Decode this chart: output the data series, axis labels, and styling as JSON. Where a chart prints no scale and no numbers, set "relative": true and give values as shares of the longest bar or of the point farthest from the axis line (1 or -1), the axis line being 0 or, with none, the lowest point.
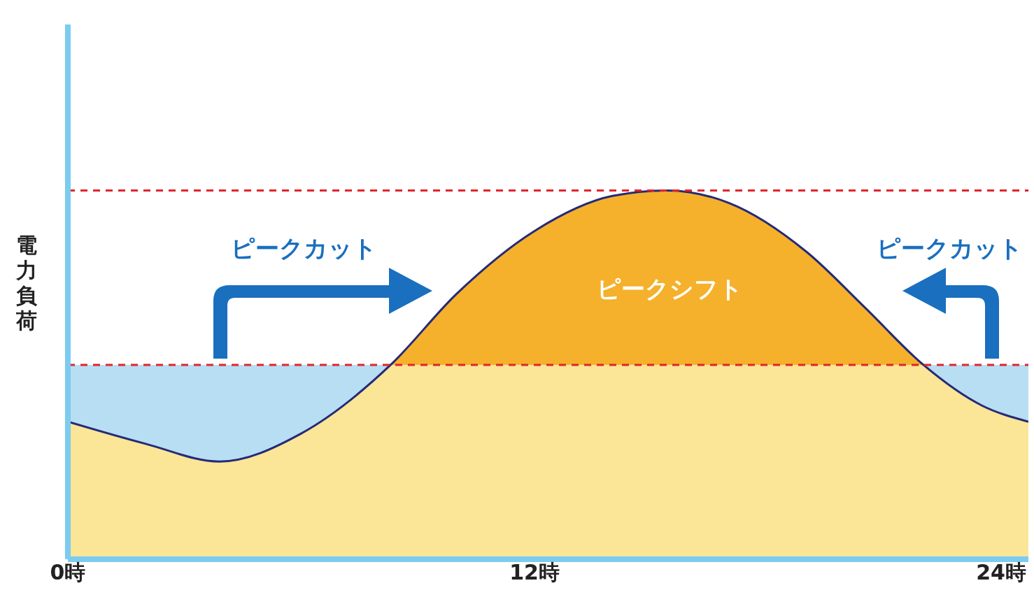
{
  "chart_data": {
    "type": "area",
    "relative": true,
    "ylabel": "電力負荷",
    "x": [
      0,
      2,
      3.9,
      6,
      8.3,
      10,
      12,
      14,
      15.4,
      17,
      19,
      20.5,
      22,
      23.5,
      24.7
    ],
    "series": [
      {
        "color": "#f5b12c",
        "values": [
          0.373,
          0.313,
          0.265,
          0.341,
          0.527,
          0.72,
          0.89,
          0.985,
          1,
          0.966,
          0.833,
          0.682,
          0.527,
          0.417,
          0.373
        ]
      }
    ],
    "xlim": [
      0,
      24.7
    ],
    "xticks": [
      {
        "value": 0,
        "label": "0時"
      },
      {
        "value": 12,
        "label": "12時"
      },
      {
        "value": 24,
        "label": "24時"
      }
    ],
    "ref_lines": [
      {
        "axis": "y",
        "value": 1,
        "color": "#e0242c",
        "line_style": "dashed"
      },
      {
        "axis": "y",
        "value": 0.527,
        "color": "#e0242c",
        "line_style": "dashed"
      }
    ],
    "bands": [
      {
        "axis": "y",
        "from": 0,
        "to": 0.527,
        "color": "#b8def3"
      }
    ],
    "annotations": [
      "ピークカット",
      "ピークシフト",
      "ピークカット"
    ],
    "tick_labels": "x"
  }
}
